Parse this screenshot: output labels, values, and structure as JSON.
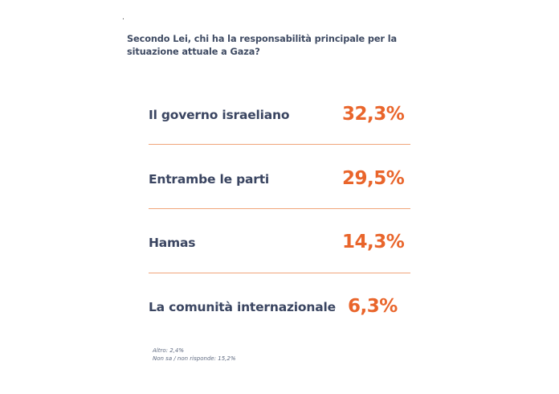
{
  "question": "Secondo Lei, chi ha la responsabilità principale per la situazione attuale a Gaza?",
  "corner_mark": ".",
  "accent_color": "#e9652b",
  "text_color": "#3a4561",
  "chart_data": {
    "type": "table",
    "title": "Secondo Lei, chi ha la responsabilità principale per la situazione attuale a Gaza?",
    "categories": [
      "Il governo israeliano",
      "Entrambe le parti",
      "Hamas",
      "La comunità internazionale"
    ],
    "values": [
      32.3,
      29.5,
      14.3,
      6.3
    ],
    "value_labels": [
      "32,3%",
      "29,5%",
      "14,3%",
      "6,3%"
    ],
    "notes": [
      {
        "label": "Altro",
        "value": 2.4,
        "text": "Altro: 2,4%"
      },
      {
        "label": "Non sa / non risponde",
        "value": 15.2,
        "text": "Non sa / non risponde: 15,2%"
      }
    ]
  }
}
